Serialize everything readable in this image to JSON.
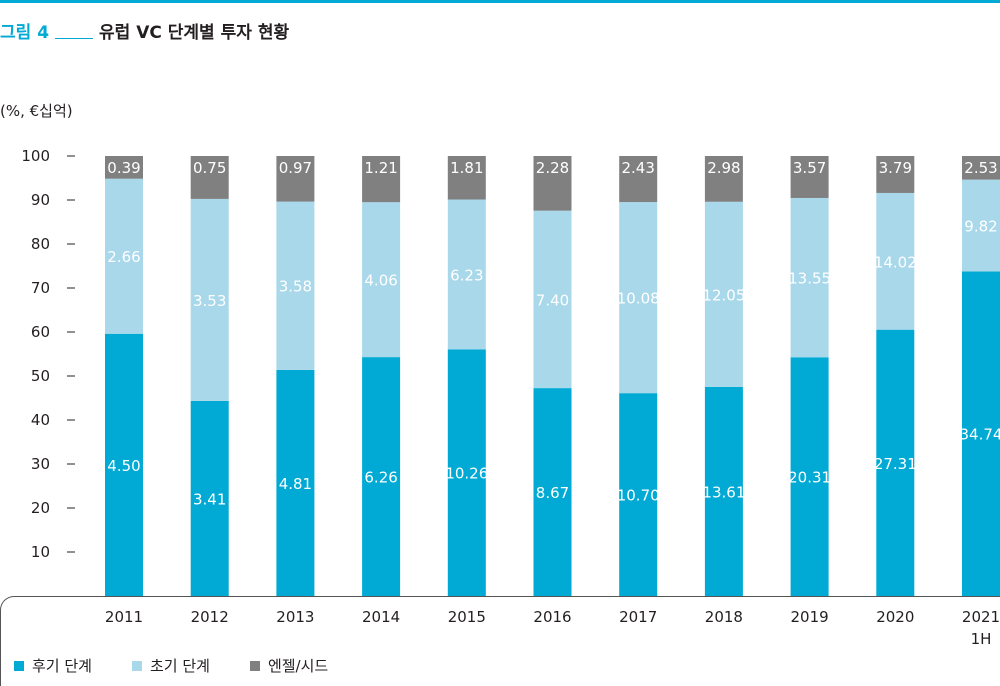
{
  "figure": {
    "label": "그림 4",
    "title": "유럽 VC 단계별 투자 현황",
    "unit": "(%, €십억)"
  },
  "colors": {
    "accent": "#00aad4",
    "late": "#00aad4",
    "early": "#a8d8ea",
    "angel": "#808080",
    "text": "#231f20"
  },
  "legend": [
    {
      "label": "후기 단계",
      "color": "#00aad4"
    },
    {
      "label": "초기 단계",
      "color": "#a8d8ea"
    },
    {
      "label": "엔젤/시드",
      "color": "#808080"
    }
  ],
  "chart_data": {
    "type": "bar",
    "stacked": true,
    "normalized_percent": true,
    "categories": [
      "2011",
      "2012",
      "2013",
      "2014",
      "2015",
      "2016",
      "2017",
      "2018",
      "2019",
      "2020",
      "2021\n1H"
    ],
    "series": [
      {
        "name": "후기 단계",
        "color": "#00aad4",
        "values": [
          4.5,
          3.41,
          4.81,
          6.26,
          10.26,
          8.67,
          10.7,
          13.61,
          20.31,
          27.31,
          34.74
        ],
        "labels": [
          "4.50",
          "3.41",
          "4.81",
          "6.26",
          "10.26",
          "8.67",
          "10.70",
          "13.61",
          "20.31",
          "27.31",
          "34.74"
        ]
      },
      {
        "name": "초기 단계",
        "color": "#a8d8ea",
        "values": [
          2.66,
          3.53,
          3.58,
          4.06,
          6.23,
          7.4,
          10.08,
          12.05,
          13.55,
          14.02,
          9.82
        ],
        "labels": [
          "2.66",
          "3.53",
          "3.58",
          "4.06",
          "6.23",
          "7.40",
          "10.08",
          "12.05",
          "13.55",
          "14.02",
          "9.82"
        ]
      },
      {
        "name": "엔젤/시드",
        "color": "#808080",
        "values": [
          0.39,
          0.75,
          0.97,
          1.21,
          1.81,
          2.28,
          2.43,
          2.98,
          3.57,
          3.79,
          2.53
        ],
        "labels": [
          "0.39",
          "0.75",
          "0.97",
          "1.21",
          "1.81",
          "2.28",
          "2.43",
          "2.98",
          "3.57",
          "3.79",
          "2.53"
        ]
      }
    ],
    "yticks": [
      "10",
      "20",
      "30",
      "40",
      "50",
      "60",
      "70",
      "80",
      "90",
      "100"
    ],
    "ylim": [
      0,
      100
    ],
    "grid": false,
    "legend_position": "bottom-left"
  }
}
